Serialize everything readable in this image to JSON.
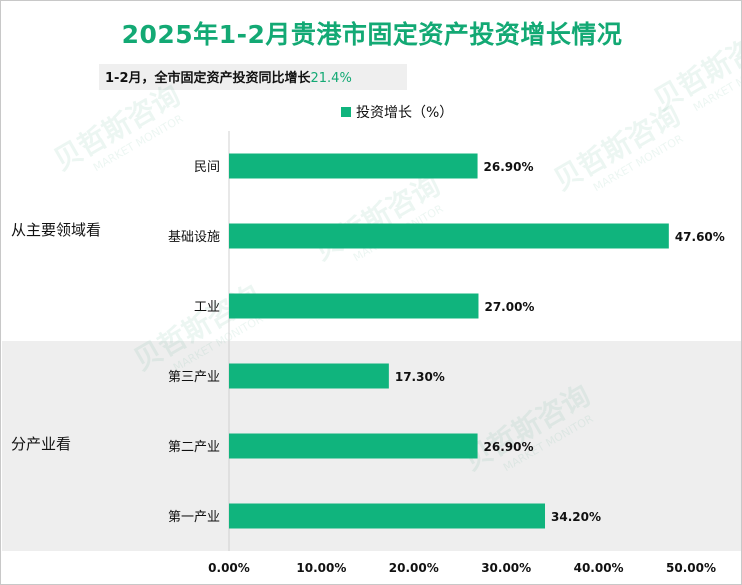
{
  "title": "2025年1-2月贵港市固定资产投资增长情况",
  "subtitle": {
    "text": "1-2月，全市固定资产投资同比增长",
    "value": "21.4%"
  },
  "watermark": {
    "cn": "贝哲斯咨询",
    "en": "MARKET MONITOR"
  },
  "chart_data": {
    "type": "bar",
    "orientation": "horizontal",
    "series": [
      {
        "name": "投资增长（%）",
        "color": "#10b47d",
        "values": [
          26.9,
          47.6,
          27.0,
          17.3,
          26.9,
          34.2
        ]
      }
    ],
    "categories": [
      "民间",
      "基础设施",
      "工业",
      "第三产业",
      "第二产业",
      "第一产业"
    ],
    "value_labels": [
      "26.90%",
      "47.60%",
      "27.00%",
      "17.30%",
      "26.90%",
      "34.20%"
    ],
    "groups": [
      {
        "label": "从主要领域看",
        "categories": [
          "民间",
          "基础设施",
          "工业"
        ]
      },
      {
        "label": "分产业看",
        "categories": [
          "第三产业",
          "第二产业",
          "第一产业"
        ]
      }
    ],
    "x_ticks": [
      "0.00%",
      "10.00%",
      "20.00%",
      "30.00%",
      "40.00%",
      "50.00%"
    ],
    "xlim": [
      0,
      50
    ],
    "legend": "top-center",
    "grid": false,
    "shaded_group": "分产业看"
  }
}
